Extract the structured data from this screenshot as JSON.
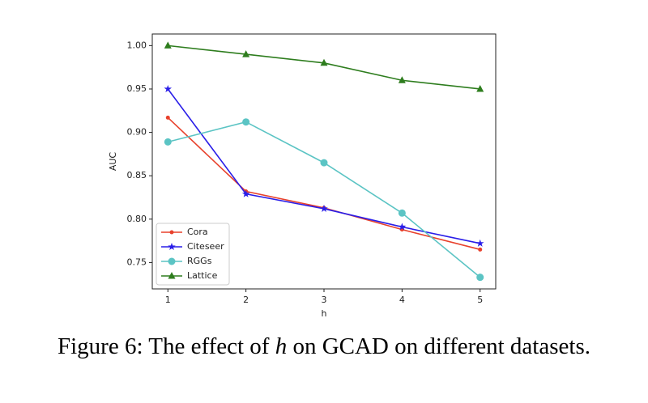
{
  "chart_data": {
    "type": "line",
    "x_label": "h",
    "y_label": "AUC",
    "x": [
      1,
      2,
      3,
      4,
      5
    ],
    "xlim": [
      0.8,
      5.2
    ],
    "xticks": [
      1,
      2,
      3,
      4,
      5
    ],
    "ylim": [
      0.7196,
      1.0134
    ],
    "yticks": [
      {
        "value": 0.75,
        "label": "0.75"
      },
      {
        "value": 0.8,
        "label": "0.80"
      },
      {
        "value": 0.85,
        "label": "0.85"
      },
      {
        "value": 0.9,
        "label": "0.90"
      },
      {
        "value": 0.95,
        "label": "0.95"
      },
      {
        "value": 1.0,
        "label": "1.00"
      }
    ],
    "grid": false,
    "legend": "lower left",
    "series": [
      {
        "name": "Cora",
        "color": "#e8412c",
        "marker": "point",
        "values": [
          0.917,
          0.832,
          0.813,
          0.788,
          0.765
        ]
      },
      {
        "name": "Citeseer",
        "color": "#2a1ee8",
        "marker": "star",
        "values": [
          0.95,
          0.829,
          0.812,
          0.791,
          0.772
        ]
      },
      {
        "name": "RGGs",
        "color": "#5bc4c4",
        "marker": "circle",
        "values": [
          0.889,
          0.912,
          0.865,
          0.807,
          0.733
        ]
      },
      {
        "name": "Lattice",
        "color": "#2e7d1e",
        "marker": "triangle",
        "values": [
          1.0,
          0.99,
          0.98,
          0.96,
          0.95
        ]
      }
    ]
  },
  "caption": {
    "before": "Figure 6: The effect of ",
    "symbol": "h",
    "after": " on GCAD on different datasets."
  }
}
